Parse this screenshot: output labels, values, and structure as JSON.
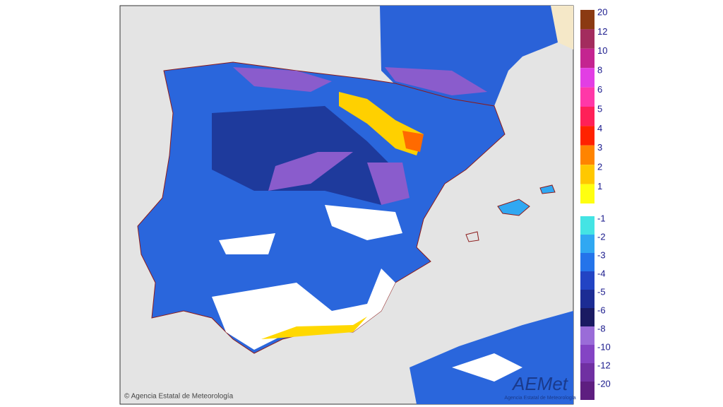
{
  "legend": {
    "warm": [
      {
        "label": "20",
        "color": "#8b3a12"
      },
      {
        "label": "12",
        "color": "#a32c5e"
      },
      {
        "label": "10",
        "color": "#c42490"
      },
      {
        "label": "8",
        "color": "#e23ee4"
      },
      {
        "label": "6",
        "color": "#ff38a8"
      },
      {
        "label": "5",
        "color": "#ff2058"
      },
      {
        "label": "4",
        "color": "#ff2200"
      },
      {
        "label": "3",
        "color": "#ff8400"
      },
      {
        "label": "2",
        "color": "#ffc800"
      },
      {
        "label": "1",
        "color": "#ffff10"
      }
    ],
    "cold": [
      {
        "label": "-1",
        "color": "#44e4e4"
      },
      {
        "label": "-2",
        "color": "#30a8f2"
      },
      {
        "label": "-3",
        "color": "#2474ea"
      },
      {
        "label": "-4",
        "color": "#2244c4"
      },
      {
        "label": "-5",
        "color": "#1c2c94"
      },
      {
        "label": "-6",
        "color": "#1a1a62"
      },
      {
        "label": "-8",
        "color": "#9a6cd8"
      },
      {
        "label": "-10",
        "color": "#8444c4"
      },
      {
        "label": "-12",
        "color": "#7030a2"
      },
      {
        "label": "-20",
        "color": "#5e1e80"
      }
    ]
  },
  "credit": "© Agencia Estatal de Meteorología",
  "logo": {
    "name": "AEMet",
    "subtitle": "Agencia Estatal de Meteorología"
  }
}
